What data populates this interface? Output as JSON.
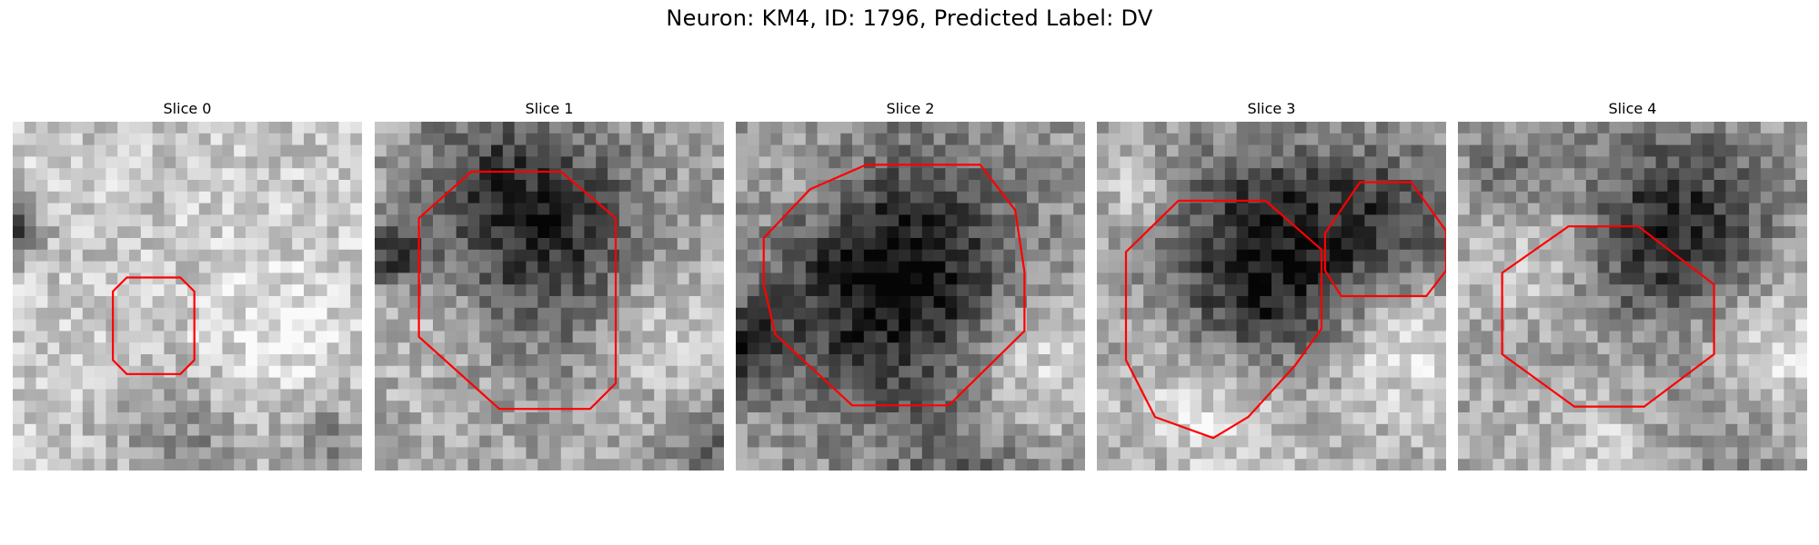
{
  "figure": {
    "title": "Neuron: KM4, ID: 1796, Predicted Label: DV"
  },
  "panels": [
    {
      "title": "Slice 0",
      "content": "noisy grayscale microscopy patch with red contour outline"
    },
    {
      "title": "Slice 1",
      "content": "noisy grayscale microscopy patch with red contour outline"
    },
    {
      "title": "Slice 2",
      "content": "noisy grayscale microscopy patch with red contour outline"
    },
    {
      "title": "Slice 3",
      "content": "noisy grayscale microscopy patch with two red contour outlines"
    },
    {
      "title": "Slice 4",
      "content": "noisy grayscale microscopy patch with red contour outline"
    }
  ],
  "colors": {
    "contour": "#ff0000"
  }
}
